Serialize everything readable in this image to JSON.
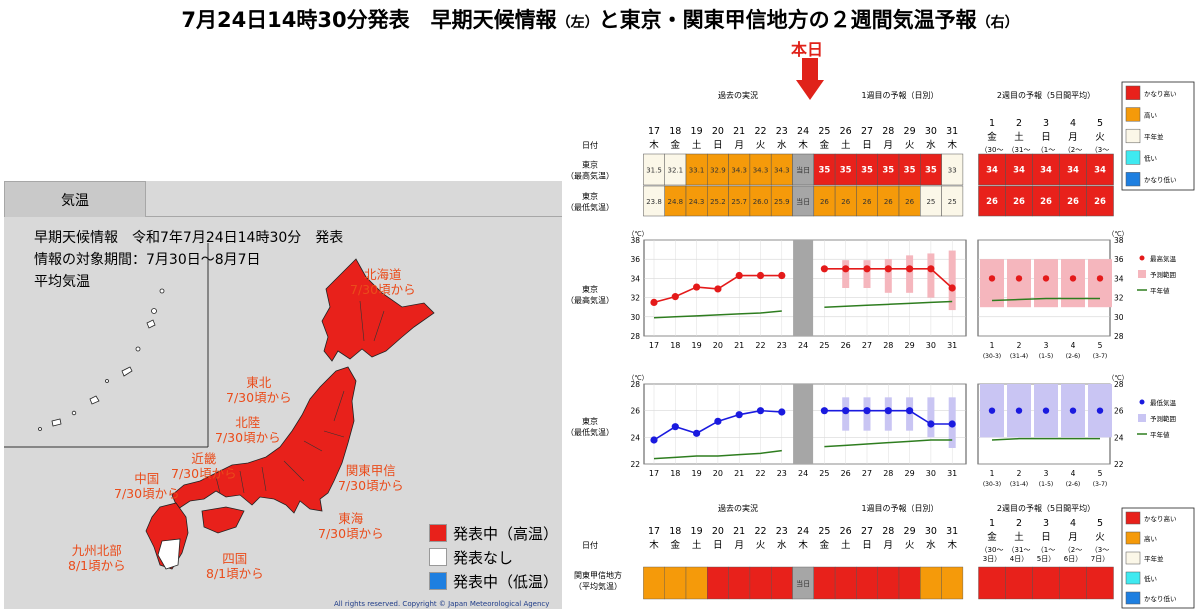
{
  "header": {
    "title_main1": "7月24日14時30分発表　早期天候情報",
    "title_small1": "（左）",
    "title_main2": "と東京・関東甲信地方の２週間気温予報",
    "title_small2": "（右）",
    "today_label": "本日"
  },
  "map_panel": {
    "tab_label": "気温",
    "info_line1": "早期天候情報　令和7年7月24日14時30分　発表",
    "info_line2": "情報の対象期間：7月30日～8月7日",
    "info_line3": "平均気温",
    "regions": [
      {
        "name": "北海道",
        "date": "7/30頃から"
      },
      {
        "name": "東北",
        "date": "7/30頃から"
      },
      {
        "name": "北陸",
        "date": "7/30頃から"
      },
      {
        "name": "近畿",
        "date": "7/30頃から"
      },
      {
        "name": "関東甲信",
        "date": "7/30頃から"
      },
      {
        "name": "中国",
        "date": "7/30頃から"
      },
      {
        "name": "東海",
        "date": "7/30頃から"
      },
      {
        "name": "九州北部",
        "date": "8/1頃から"
      },
      {
        "name": "四国",
        "date": "8/1頃から"
      }
    ],
    "legend": [
      {
        "label": "発表中（高温）",
        "color": "#e8211b"
      },
      {
        "label": "発表なし",
        "color": "#ffffff"
      },
      {
        "label": "発表中（低温）",
        "color": "#1e7fe0"
      }
    ],
    "copyright": "All rights reserved. Copyright © Japan Meteorological Agency"
  },
  "forecast": {
    "section_labels": [
      "過去の実況",
      "1週目の予報（日別）",
      "2週目の予報（5日間平均）"
    ],
    "row_label_date": "日付",
    "row_label_tokyo_max": [
      "東京",
      "（最高気温）"
    ],
    "row_label_tokyo_min": [
      "東京",
      "（最低気温）"
    ],
    "row_label_kanto": [
      "関東甲信地方",
      "（平均気温）"
    ],
    "unit_label": "（℃）",
    "today_cell": "当日",
    "days": [
      "17",
      "18",
      "19",
      "20",
      "21",
      "22",
      "23",
      "24",
      "25",
      "26",
      "27",
      "28",
      "29",
      "30",
      "31"
    ],
    "weekdays": [
      "木",
      "金",
      "土",
      "日",
      "月",
      "火",
      "水",
      "木",
      "金",
      "土",
      "日",
      "月",
      "火",
      "水",
      "木"
    ],
    "week2_nums": [
      "1",
      "2",
      "3",
      "4",
      "5"
    ],
    "week2_weekdays": [
      "金",
      "土",
      "日",
      "月",
      "火"
    ],
    "week2_ranges": [
      [
        "（30～",
        "3日）"
      ],
      [
        "（31～",
        "4日）"
      ],
      [
        "（1～",
        "5日）"
      ],
      [
        "（2～",
        "6日）"
      ],
      [
        "（3～",
        "7日）"
      ]
    ],
    "week2_axis_labels": [
      [
        "1",
        "(30-3)"
      ],
      [
        "2",
        "(31-4)"
      ],
      [
        "3",
        "(1-5)"
      ],
      [
        "4",
        "(2-6)"
      ],
      [
        "5",
        "(3-7)"
      ]
    ],
    "tokyo_max_values": [
      "31.5",
      "32.1",
      "33.1",
      "32.9",
      "34.3",
      "34.3",
      "34.3",
      "当日",
      "35",
      "35",
      "35",
      "35",
      "35",
      "35",
      "33"
    ],
    "tokyo_max_colors": [
      "w",
      "w",
      "o",
      "o",
      "o",
      "o",
      "o",
      "g",
      "r",
      "r",
      "r",
      "r",
      "r",
      "r",
      "w"
    ],
    "tokyo_min_values": [
      "23.8",
      "24.8",
      "24.3",
      "25.2",
      "25.7",
      "26.0",
      "25.9",
      "当日",
      "26",
      "26",
      "26",
      "26",
      "26",
      "25",
      "25"
    ],
    "tokyo_min_colors": [
      "w",
      "o",
      "o",
      "o",
      "o",
      "o",
      "o",
      "g",
      "o",
      "o",
      "o",
      "o",
      "o",
      "w",
      "w"
    ],
    "tokyo_max_w2": [
      "34",
      "34",
      "34",
      "34",
      "34"
    ],
    "tokyo_min_w2": [
      "26",
      "26",
      "26",
      "26",
      "26"
    ],
    "kanto_colors": [
      "o",
      "o",
      "o",
      "r",
      "r",
      "r",
      "r",
      "g",
      "r",
      "r",
      "r",
      "r",
      "r",
      "o",
      "o"
    ],
    "kanto_w2_colors": [
      "r",
      "r",
      "r",
      "r",
      "r"
    ],
    "cat_legend": [
      {
        "label": "かなり高い",
        "color": "#e8211b"
      },
      {
        "label": "高い",
        "color": "#f59a0a"
      },
      {
        "label": "平年並",
        "color": "#fbf7e8"
      },
      {
        "label": "低い",
        "color": "#3fe9f0"
      },
      {
        "label": "かなり低い",
        "color": "#1e7fe0"
      }
    ],
    "legend_max": [
      "最高気温",
      "予測範囲",
      "平年値"
    ],
    "legend_min": [
      "最低気温",
      "予測範囲",
      "平年値"
    ],
    "colors": {
      "red": "#e8211b",
      "orange": "#f59a0a",
      "white": "#fbf7e8",
      "gray": "#a6a6a6",
      "line_red": "#e41a1a",
      "line_blue": "#1a1adf",
      "normal_green": "#2e7d1f",
      "pink": "#f5b6bd",
      "lav": "#c9c5f3"
    }
  },
  "chart_data": [
    {
      "type": "line",
      "title": "東京（最高気温）",
      "ylabel": "（℃）",
      "ylim": [
        28,
        38
      ],
      "x": [
        "17",
        "18",
        "19",
        "20",
        "21",
        "22",
        "23",
        "24",
        "25",
        "26",
        "27",
        "28",
        "29",
        "30",
        "31"
      ],
      "series": [
        {
          "name": "最高気温",
          "values": [
            31.5,
            32.1,
            33.1,
            32.9,
            34.3,
            34.3,
            34.3,
            null,
            35,
            35,
            35,
            35,
            35,
            35,
            33
          ]
        },
        {
          "name": "平年値",
          "values": [
            29.9,
            30.0,
            30.1,
            30.2,
            30.3,
            30.4,
            30.6,
            null,
            31.0,
            31.1,
            31.2,
            31.3,
            31.4,
            31.5,
            31.6
          ]
        },
        {
          "name": "予測範囲",
          "ranges": [
            null,
            null,
            null,
            null,
            null,
            null,
            null,
            null,
            null,
            [
              33,
              35.9
            ],
            [
              33,
              35.9
            ],
            [
              32.5,
              36
            ],
            [
              32.5,
              36.4
            ],
            [
              32,
              36.6
            ],
            [
              30.7,
              36.9
            ]
          ]
        }
      ],
      "week2": {
        "x": [
          "1",
          "2",
          "3",
          "4",
          "5"
        ],
        "max": [
          34,
          34,
          34,
          34,
          34
        ],
        "range": [
          [
            31,
            36
          ],
          [
            31,
            36
          ],
          [
            31,
            36
          ],
          [
            31,
            36
          ],
          [
            31,
            36
          ]
        ],
        "normal": [
          31.7,
          31.8,
          31.9,
          31.9,
          31.9
        ]
      }
    },
    {
      "type": "line",
      "title": "東京（最低気温）",
      "ylim": [
        22,
        28
      ],
      "x": [
        "17",
        "18",
        "19",
        "20",
        "21",
        "22",
        "23",
        "24",
        "25",
        "26",
        "27",
        "28",
        "29",
        "30",
        "31"
      ],
      "series": [
        {
          "name": "最低気温",
          "values": [
            23.8,
            24.8,
            24.3,
            25.2,
            25.7,
            26.0,
            25.9,
            null,
            26,
            26,
            26,
            26,
            26,
            25,
            25
          ]
        },
        {
          "name": "平年値",
          "values": [
            22.4,
            22.5,
            22.6,
            22.6,
            22.7,
            22.8,
            23.0,
            null,
            23.3,
            23.4,
            23.5,
            23.6,
            23.7,
            23.8,
            23.8
          ]
        },
        {
          "name": "予測範囲",
          "ranges": [
            null,
            null,
            null,
            null,
            null,
            null,
            null,
            null,
            null,
            [
              24.5,
              27
            ],
            [
              24.5,
              27
            ],
            [
              24.5,
              27
            ],
            [
              24.5,
              27
            ],
            [
              24,
              27
            ],
            [
              23.2,
              27
            ]
          ]
        }
      ],
      "week2": {
        "x": [
          "1",
          "2",
          "3",
          "4",
          "5"
        ],
        "min": [
          26,
          26,
          26,
          26,
          26
        ],
        "range": [
          [
            24,
            28
          ],
          [
            24,
            28
          ],
          [
            24,
            28
          ],
          [
            24,
            28
          ],
          [
            24,
            28
          ]
        ],
        "normal": [
          23.8,
          23.9,
          23.9,
          23.9,
          23.9
        ]
      }
    }
  ]
}
